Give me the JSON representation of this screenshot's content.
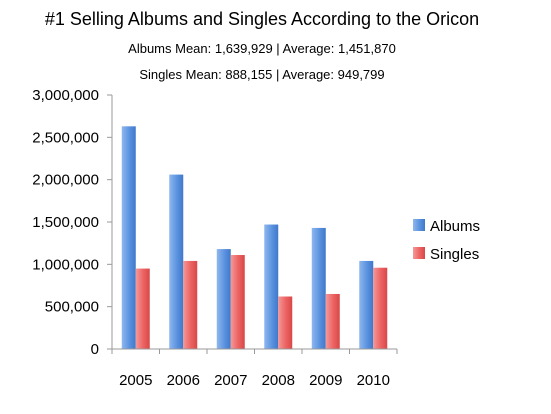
{
  "chart_data": {
    "type": "bar",
    "title": "#1 Selling Albums and Singles According to the Oricon",
    "subtitles": [
      "Albums Mean: 1,639,929 | Average: 1,451,870",
      "Singles Mean: 888,155 | Average: 949,799"
    ],
    "categories": [
      "2005",
      "2006",
      "2007",
      "2008",
      "2009",
      "2010"
    ],
    "series": [
      {
        "name": "Albums",
        "color": "#5b93e0",
        "values": [
          2630000,
          2060000,
          1180000,
          1470000,
          1430000,
          1040000
        ]
      },
      {
        "name": "Singles",
        "color": "#ec5f5f",
        "values": [
          950000,
          1040000,
          1110000,
          620000,
          650000,
          960000
        ]
      }
    ],
    "ylim": [
      0,
      3000000
    ],
    "yticks": [
      "0",
      "500,000",
      "1,000,000",
      "1,500,000",
      "2,000,000",
      "2,500,000",
      "3,000,000"
    ],
    "grid": false,
    "legend_position": "right"
  }
}
